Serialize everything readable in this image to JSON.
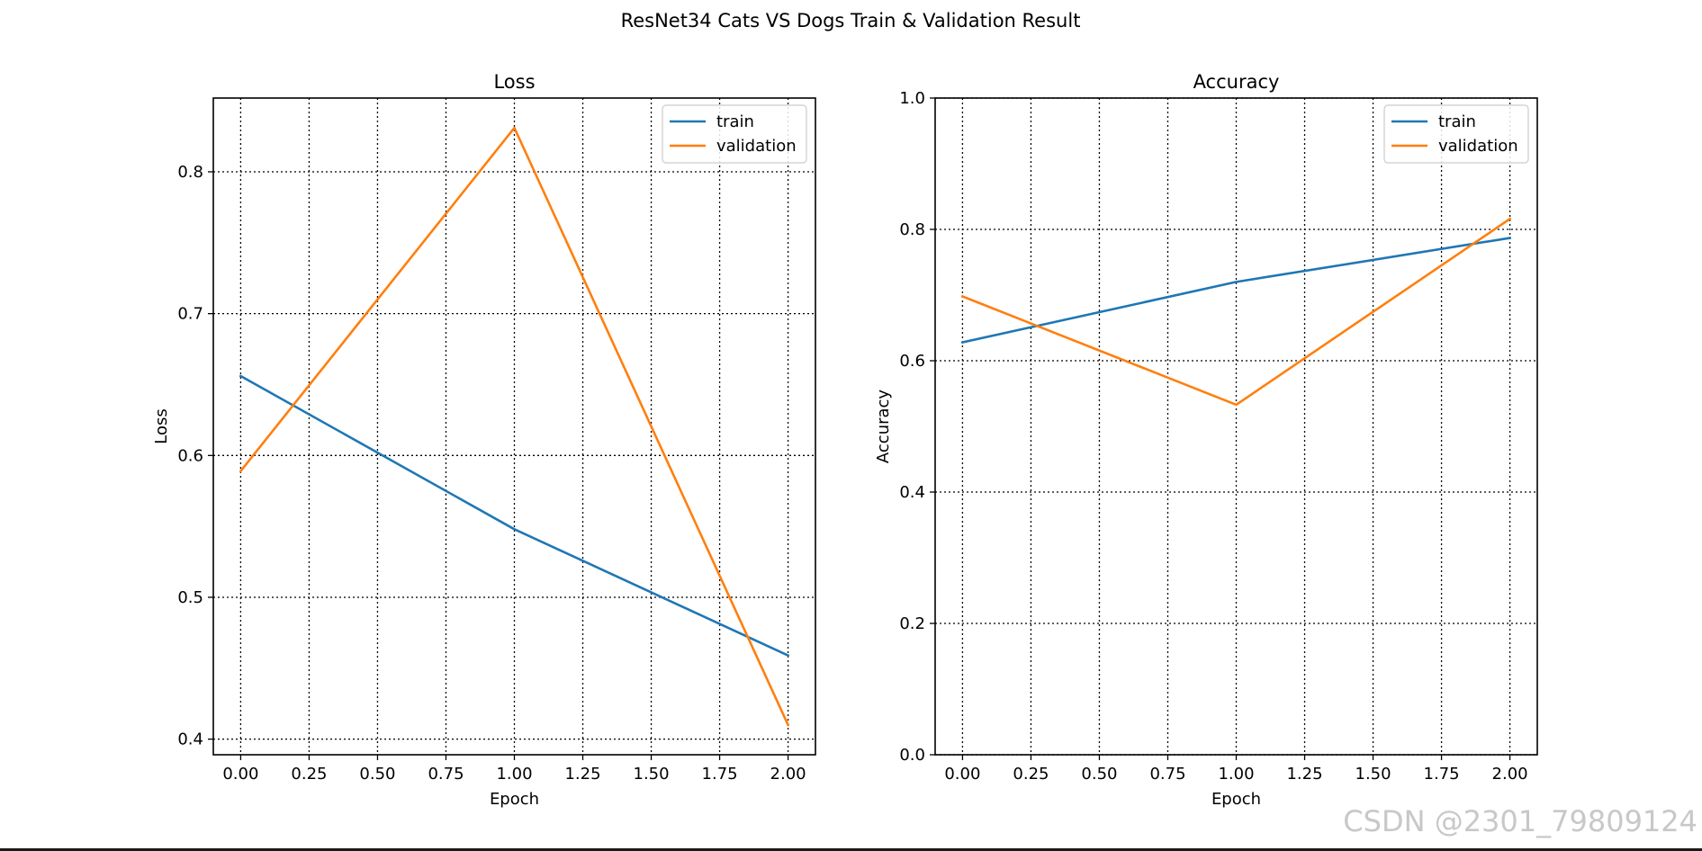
{
  "figure": {
    "suptitle": "ResNet34 Cats VS Dogs Train & Validation Result",
    "watermark": "CSDN @2301_79809124"
  },
  "colors": {
    "train": "#1f77b4",
    "validation": "#ff7f0e",
    "axis": "#000000",
    "grid": "#000000",
    "watermark": "#c8c8c8"
  },
  "chart_data": [
    {
      "id": "loss",
      "type": "line",
      "title": "Loss",
      "xlabel": "Epoch",
      "ylabel": "Loss",
      "xlim": [
        -0.1,
        2.1
      ],
      "ylim": [
        0.389,
        0.852
      ],
      "xticks": [
        0.0,
        0.25,
        0.5,
        0.75,
        1.0,
        1.25,
        1.5,
        1.75,
        2.0
      ],
      "xtick_labels": [
        "0.00",
        "0.25",
        "0.50",
        "0.75",
        "1.00",
        "1.25",
        "1.50",
        "1.75",
        "2.00"
      ],
      "yticks": [
        0.4,
        0.5,
        0.6,
        0.7,
        0.8
      ],
      "ytick_labels": [
        "0.4",
        "0.5",
        "0.6",
        "0.7",
        "0.8"
      ],
      "grid": true,
      "legend": "upper right",
      "x": [
        0,
        1,
        2
      ],
      "series": [
        {
          "name": "train",
          "values": [
            0.656,
            0.548,
            0.459
          ]
        },
        {
          "name": "validation",
          "values": [
            0.589,
            0.831,
            0.41
          ]
        }
      ]
    },
    {
      "id": "accuracy",
      "type": "line",
      "title": "Accuracy",
      "xlabel": "Epoch",
      "ylabel": "Accuracy",
      "xlim": [
        -0.1,
        2.1
      ],
      "ylim": [
        0.0,
        1.0
      ],
      "xticks": [
        0.0,
        0.25,
        0.5,
        0.75,
        1.0,
        1.25,
        1.5,
        1.75,
        2.0
      ],
      "xtick_labels": [
        "0.00",
        "0.25",
        "0.50",
        "0.75",
        "1.00",
        "1.25",
        "1.50",
        "1.75",
        "2.00"
      ],
      "yticks": [
        0.0,
        0.2,
        0.4,
        0.6,
        0.8,
        1.0
      ],
      "ytick_labels": [
        "0.0",
        "0.2",
        "0.4",
        "0.6",
        "0.8",
        "1.0"
      ],
      "grid": true,
      "legend": "upper right",
      "x": [
        0,
        1,
        2
      ],
      "series": [
        {
          "name": "train",
          "values": [
            0.628,
            0.72,
            0.787
          ]
        },
        {
          "name": "validation",
          "values": [
            0.698,
            0.533,
            0.816
          ]
        }
      ]
    }
  ]
}
